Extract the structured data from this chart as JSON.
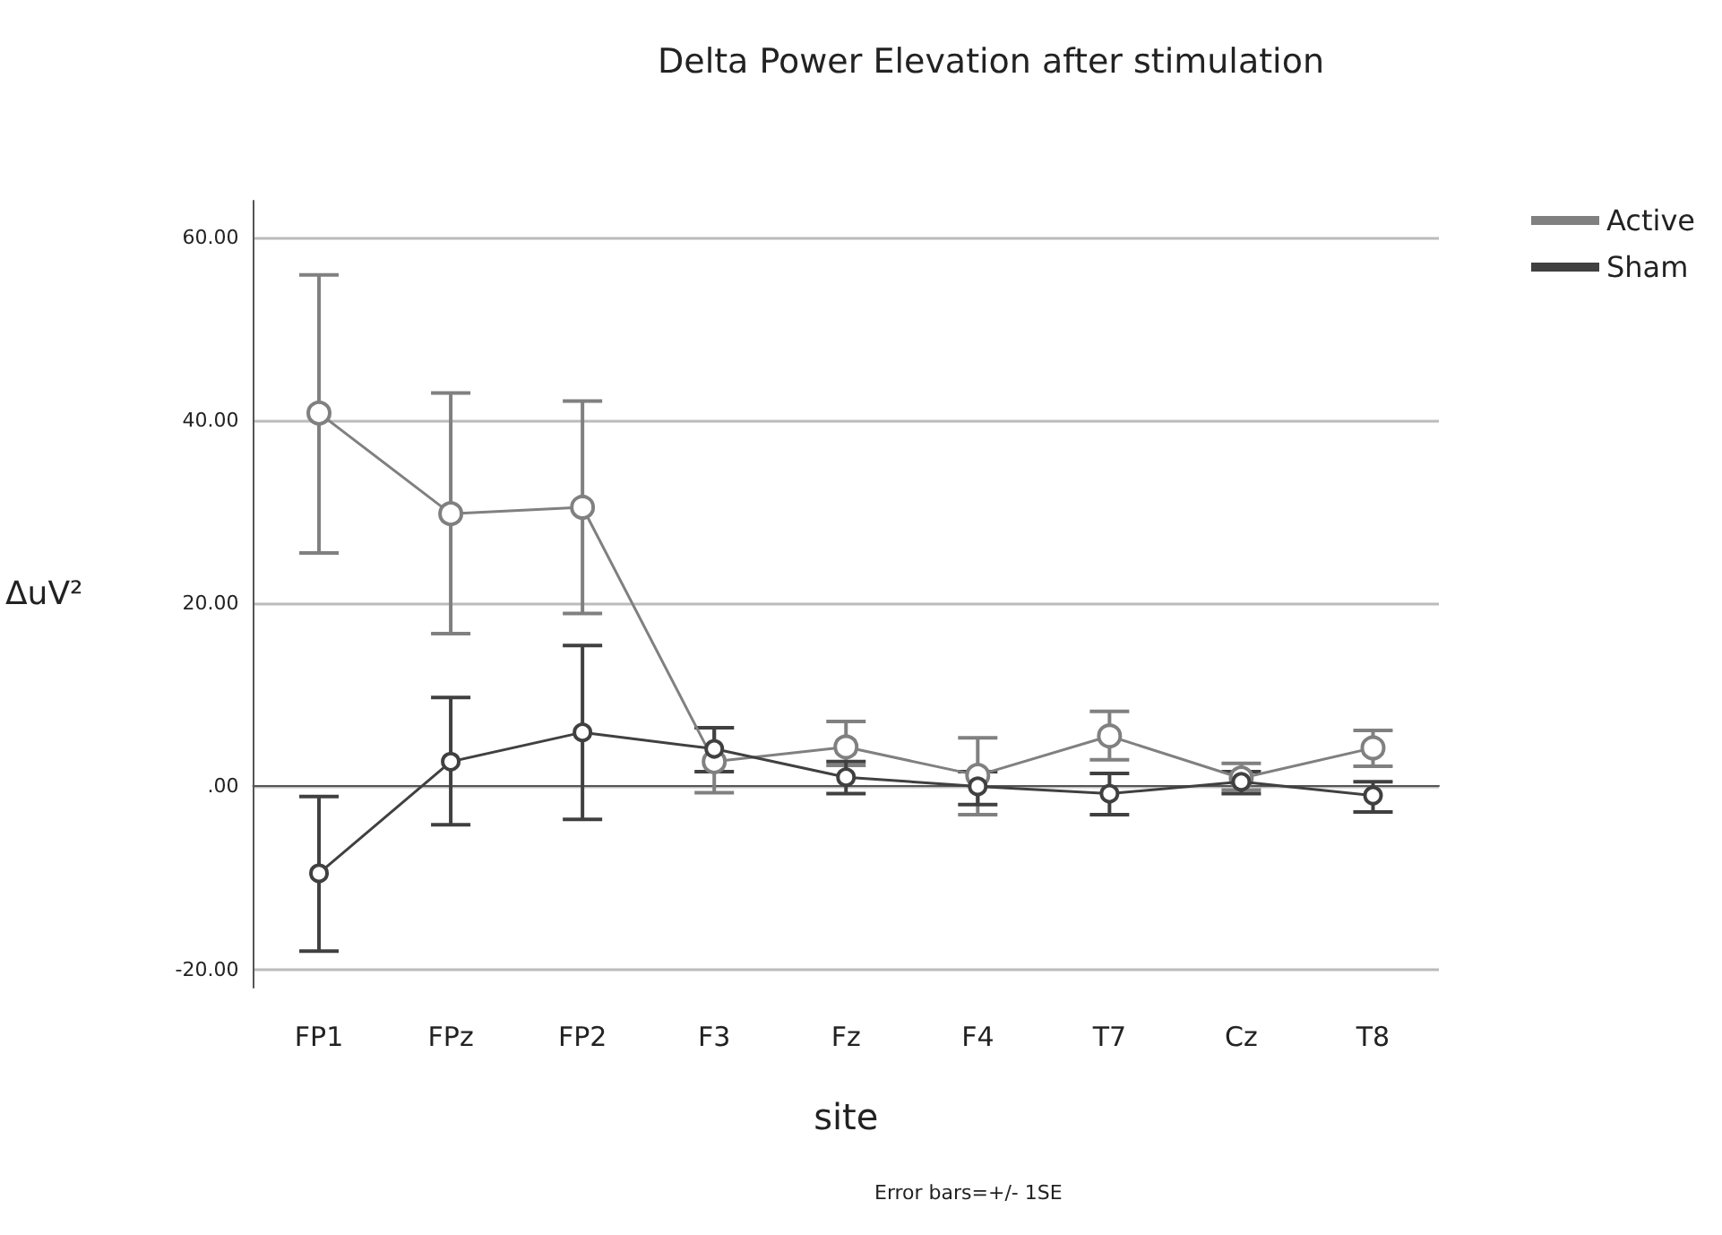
{
  "chart_data": {
    "type": "line",
    "title": "Delta Power Elevation after stimulation",
    "xlabel": "site",
    "ylabel": "ΔuV²",
    "annotations": [
      "Error bars=+/- 1SE"
    ],
    "categories": [
      "FP1",
      "FPz",
      "FP2",
      "F3",
      "Fz",
      "F4",
      "T7",
      "Cz",
      "T8"
    ],
    "series": [
      {
        "name": "Active",
        "color": "#808080",
        "values": [
          40.8,
          29.8,
          30.5,
          2.7,
          4.3,
          1.2,
          5.5,
          0.9,
          4.2
        ],
        "errors": [
          [
            25.5,
            55.9
          ],
          [
            16.7,
            43.0
          ],
          [
            18.9,
            42.1
          ],
          [
            -0.7,
            6.4
          ],
          [
            2.3,
            7.1
          ],
          [
            -3.1,
            5.3
          ],
          [
            2.9,
            8.2
          ],
          [
            -0.4,
            2.5
          ],
          [
            2.2,
            6.1
          ]
        ]
      },
      {
        "name": "Sham",
        "color": "#404040",
        "values": [
          -9.5,
          2.7,
          5.9,
          4.1,
          1.0,
          0,
          -0.8,
          0.5,
          -1.0
        ],
        "errors": [
          [
            -18.0,
            -1.1
          ],
          [
            -4.2,
            9.7
          ],
          [
            -3.6,
            15.4
          ],
          [
            1.6,
            6.4
          ],
          [
            -0.8,
            2.7
          ],
          [
            -2.0,
            1.6
          ],
          [
            -3.1,
            1.4
          ],
          [
            -0.8,
            1.6
          ],
          [
            -2.8,
            0.5
          ]
        ]
      }
    ],
    "ylim": [
      -22,
      64
    ],
    "yticks": [
      {
        "value": -20,
        "label": "-20.00"
      },
      {
        "value": 0,
        "label": ".00"
      },
      {
        "value": 20,
        "label": "20.00"
      },
      {
        "value": 40,
        "label": "40.00"
      },
      {
        "value": 60,
        "label": "60.00"
      }
    ],
    "grid": "y",
    "legend": "top right",
    "marker": "circle",
    "line_style": "solid"
  }
}
